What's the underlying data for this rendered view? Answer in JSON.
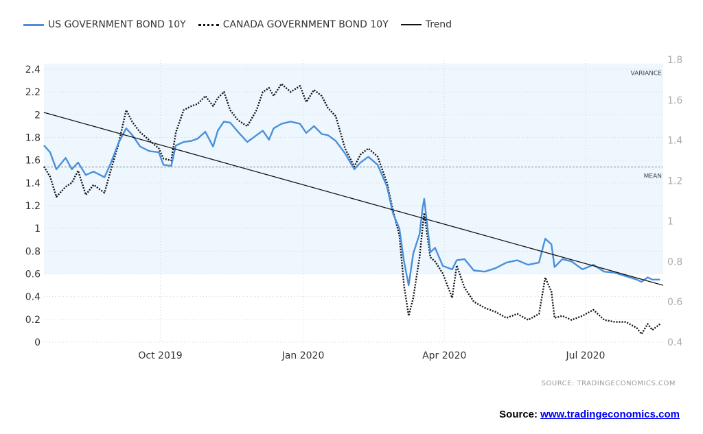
{
  "legend": {
    "us_label": "US GOVERNMENT BOND 10Y",
    "ca_label": "CANADA GOVERNMENT BOND 10Y",
    "trend_label": "Trend"
  },
  "notes": {
    "variance": "VARIANCE",
    "mean": "MEAN"
  },
  "source_small": "SOURCE:  TRADINGECONOMICS.COM",
  "source_big": {
    "prefix": "Source: ",
    "link": "www.tradingeconomics.com"
  },
  "colors": {
    "us": "#4a90d9",
    "ca": "#111111",
    "trend": "#111111",
    "band": "#eef6fe"
  },
  "chart_data": {
    "type": "line",
    "x_tick_labels": [
      "Oct 2019",
      "Jan 2020",
      "Apr 2020",
      "Jul 2020"
    ],
    "x_ticks": [
      "2019-10-01",
      "2020-01-01",
      "2020-04-01",
      "2020-07-01"
    ],
    "x_range": [
      "2019-07-18",
      "2020-08-20"
    ],
    "y_left_ticks": [
      "0",
      "0.2",
      "0.4",
      "0.6",
      "0.8",
      "1",
      "1.2",
      "1.4",
      "1.6",
      "1.8",
      "2",
      "2.2",
      "2.4"
    ],
    "y_left_range": [
      0,
      2.4
    ],
    "y_right_ticks": [
      "0.4",
      "0.6",
      "0.8",
      "1",
      "1.2",
      "1.4",
      "1.6",
      "1.8"
    ],
    "y_right_range": [
      0.4,
      1.8
    ],
    "mean": 1.54,
    "variance_band": [
      0.6,
      2.45
    ],
    "grid": true,
    "legend_position": "top-left",
    "series": [
      {
        "name": "US GOVERNMENT BOND 10Y",
        "axis": "left",
        "style": "solid",
        "points": [
          [
            "2019-07-18",
            1.73
          ],
          [
            "2019-07-22",
            1.67
          ],
          [
            "2019-07-26",
            1.52
          ],
          [
            "2019-08-01",
            1.62
          ],
          [
            "2019-08-05",
            1.52
          ],
          [
            "2019-08-09",
            1.58
          ],
          [
            "2019-08-14",
            1.47
          ],
          [
            "2019-08-19",
            1.5
          ],
          [
            "2019-08-26",
            1.45
          ],
          [
            "2019-08-30",
            1.57
          ],
          [
            "2019-09-04",
            1.75
          ],
          [
            "2019-09-09",
            1.88
          ],
          [
            "2019-09-13",
            1.82
          ],
          [
            "2019-09-18",
            1.72
          ],
          [
            "2019-09-24",
            1.68
          ],
          [
            "2019-09-30",
            1.67
          ],
          [
            "2019-10-03",
            1.56
          ],
          [
            "2019-10-08",
            1.55
          ],
          [
            "2019-10-11",
            1.73
          ],
          [
            "2019-10-16",
            1.76
          ],
          [
            "2019-10-21",
            1.77
          ],
          [
            "2019-10-25",
            1.79
          ],
          [
            "2019-10-30",
            1.85
          ],
          [
            "2019-11-04",
            1.72
          ],
          [
            "2019-11-07",
            1.86
          ],
          [
            "2019-11-11",
            1.94
          ],
          [
            "2019-11-15",
            1.93
          ],
          [
            "2019-11-20",
            1.85
          ],
          [
            "2019-11-26",
            1.76
          ],
          [
            "2019-12-02",
            1.82
          ],
          [
            "2019-12-06",
            1.86
          ],
          [
            "2019-12-10",
            1.78
          ],
          [
            "2019-12-13",
            1.88
          ],
          [
            "2019-12-18",
            1.92
          ],
          [
            "2019-12-24",
            1.94
          ],
          [
            "2019-12-30",
            1.92
          ],
          [
            "2020-01-03",
            1.84
          ],
          [
            "2020-01-08",
            1.9
          ],
          [
            "2020-01-13",
            1.83
          ],
          [
            "2020-01-17",
            1.82
          ],
          [
            "2020-01-22",
            1.77
          ],
          [
            "2020-01-28",
            1.66
          ],
          [
            "2020-02-03",
            1.52
          ],
          [
            "2020-02-07",
            1.58
          ],
          [
            "2020-02-12",
            1.63
          ],
          [
            "2020-02-18",
            1.56
          ],
          [
            "2020-02-24",
            1.37
          ],
          [
            "2020-02-28",
            1.13
          ],
          [
            "2020-03-03",
            1.0
          ],
          [
            "2020-03-06",
            0.71
          ],
          [
            "2020-03-09",
            0.5
          ],
          [
            "2020-03-12",
            0.78
          ],
          [
            "2020-03-16",
            0.95
          ],
          [
            "2020-03-18",
            1.18
          ],
          [
            "2020-03-19",
            1.26
          ],
          [
            "2020-03-23",
            0.79
          ],
          [
            "2020-03-26",
            0.83
          ],
          [
            "2020-03-31",
            0.67
          ],
          [
            "2020-04-06",
            0.64
          ],
          [
            "2020-04-09",
            0.72
          ],
          [
            "2020-04-14",
            0.73
          ],
          [
            "2020-04-20",
            0.63
          ],
          [
            "2020-04-27",
            0.62
          ],
          [
            "2020-05-04",
            0.65
          ],
          [
            "2020-05-11",
            0.7
          ],
          [
            "2020-05-18",
            0.72
          ],
          [
            "2020-05-25",
            0.68
          ],
          [
            "2020-06-01",
            0.7
          ],
          [
            "2020-06-05",
            0.91
          ],
          [
            "2020-06-09",
            0.86
          ],
          [
            "2020-06-11",
            0.66
          ],
          [
            "2020-06-16",
            0.73
          ],
          [
            "2020-06-22",
            0.71
          ],
          [
            "2020-06-29",
            0.64
          ],
          [
            "2020-07-06",
            0.68
          ],
          [
            "2020-07-13",
            0.62
          ],
          [
            "2020-07-20",
            0.61
          ],
          [
            "2020-07-27",
            0.58
          ],
          [
            "2020-08-03",
            0.55
          ],
          [
            "2020-08-06",
            0.53
          ],
          [
            "2020-08-10",
            0.57
          ],
          [
            "2020-08-13",
            0.55
          ],
          [
            "2020-08-18",
            0.55
          ]
        ]
      },
      {
        "name": "CANADA GOVERNMENT BOND 10Y",
        "axis": "right",
        "style": "dotted",
        "points": [
          [
            "2019-07-18",
            1.27
          ],
          [
            "2019-07-22",
            1.22
          ],
          [
            "2019-07-26",
            1.12
          ],
          [
            "2019-08-01",
            1.17
          ],
          [
            "2019-08-05",
            1.19
          ],
          [
            "2019-08-09",
            1.25
          ],
          [
            "2019-08-14",
            1.13
          ],
          [
            "2019-08-19",
            1.18
          ],
          [
            "2019-08-26",
            1.14
          ],
          [
            "2019-08-30",
            1.25
          ],
          [
            "2019-09-04",
            1.38
          ],
          [
            "2019-09-09",
            1.55
          ],
          [
            "2019-09-13",
            1.49
          ],
          [
            "2019-09-18",
            1.44
          ],
          [
            "2019-09-24",
            1.4
          ],
          [
            "2019-09-30",
            1.36
          ],
          [
            "2019-10-03",
            1.31
          ],
          [
            "2019-10-08",
            1.3
          ],
          [
            "2019-10-11",
            1.44
          ],
          [
            "2019-10-16",
            1.55
          ],
          [
            "2019-10-21",
            1.57
          ],
          [
            "2019-10-25",
            1.58
          ],
          [
            "2019-10-30",
            1.62
          ],
          [
            "2019-11-04",
            1.57
          ],
          [
            "2019-11-07",
            1.61
          ],
          [
            "2019-11-11",
            1.64
          ],
          [
            "2019-11-15",
            1.55
          ],
          [
            "2019-11-20",
            1.5
          ],
          [
            "2019-11-26",
            1.47
          ],
          [
            "2019-12-02",
            1.55
          ],
          [
            "2019-12-06",
            1.64
          ],
          [
            "2019-12-10",
            1.66
          ],
          [
            "2019-12-13",
            1.62
          ],
          [
            "2019-12-18",
            1.68
          ],
          [
            "2019-12-24",
            1.64
          ],
          [
            "2019-12-30",
            1.67
          ],
          [
            "2020-01-03",
            1.59
          ],
          [
            "2020-01-08",
            1.65
          ],
          [
            "2020-01-13",
            1.62
          ],
          [
            "2020-01-17",
            1.56
          ],
          [
            "2020-01-22",
            1.52
          ],
          [
            "2020-01-28",
            1.36
          ],
          [
            "2020-02-03",
            1.27
          ],
          [
            "2020-02-07",
            1.33
          ],
          [
            "2020-02-12",
            1.36
          ],
          [
            "2020-02-18",
            1.32
          ],
          [
            "2020-02-24",
            1.19
          ],
          [
            "2020-02-28",
            1.05
          ],
          [
            "2020-03-03",
            0.93
          ],
          [
            "2020-03-06",
            0.68
          ],
          [
            "2020-03-09",
            0.53
          ],
          [
            "2020-03-12",
            0.62
          ],
          [
            "2020-03-16",
            0.82
          ],
          [
            "2020-03-18",
            0.97
          ],
          [
            "2020-03-19",
            1.04
          ],
          [
            "2020-03-23",
            0.82
          ],
          [
            "2020-03-26",
            0.8
          ],
          [
            "2020-03-31",
            0.74
          ],
          [
            "2020-04-06",
            0.62
          ],
          [
            "2020-04-09",
            0.78
          ],
          [
            "2020-04-14",
            0.67
          ],
          [
            "2020-04-20",
            0.6
          ],
          [
            "2020-04-27",
            0.57
          ],
          [
            "2020-05-04",
            0.55
          ],
          [
            "2020-05-11",
            0.52
          ],
          [
            "2020-05-18",
            0.54
          ],
          [
            "2020-05-25",
            0.51
          ],
          [
            "2020-06-01",
            0.54
          ],
          [
            "2020-06-05",
            0.72
          ],
          [
            "2020-06-09",
            0.65
          ],
          [
            "2020-06-11",
            0.52
          ],
          [
            "2020-06-16",
            0.53
          ],
          [
            "2020-06-22",
            0.51
          ],
          [
            "2020-06-29",
            0.53
          ],
          [
            "2020-07-06",
            0.56
          ],
          [
            "2020-07-13",
            0.51
          ],
          [
            "2020-07-20",
            0.5
          ],
          [
            "2020-07-27",
            0.5
          ],
          [
            "2020-08-03",
            0.47
          ],
          [
            "2020-08-06",
            0.44
          ],
          [
            "2020-08-10",
            0.49
          ],
          [
            "2020-08-13",
            0.46
          ],
          [
            "2020-08-18",
            0.49
          ]
        ]
      },
      {
        "name": "Trend",
        "axis": "left",
        "style": "solid",
        "points": [
          [
            "2019-07-18",
            2.02
          ],
          [
            "2020-08-20",
            0.5
          ]
        ]
      }
    ]
  }
}
